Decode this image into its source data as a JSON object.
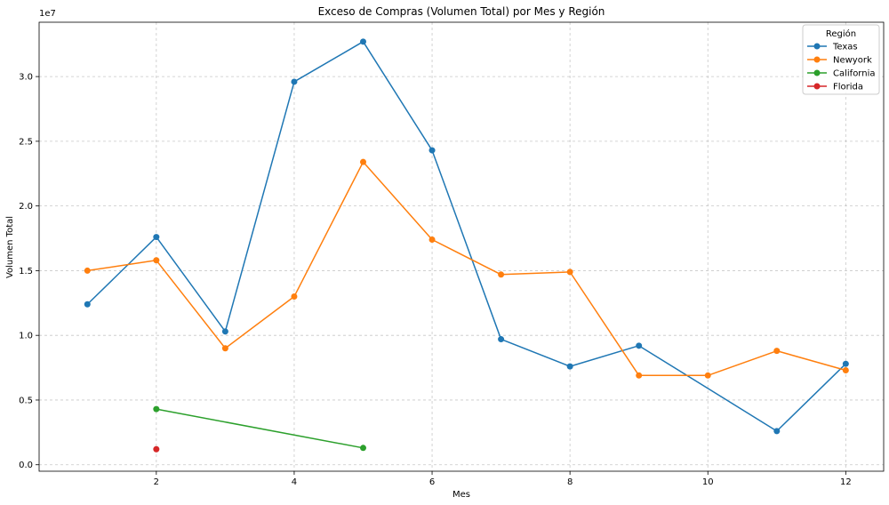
{
  "chart_data": {
    "type": "line",
    "title": "Exceso de Compras (Volumen Total) por Mes y Región",
    "xlabel": "Mes",
    "ylabel": "Volumen Total",
    "y_offset_label": "1e7",
    "xlim": [
      0.3,
      12.55
    ],
    "ylim": [
      -0.05,
      3.42
    ],
    "y_unit_scale": 10000000,
    "x_ticks": [
      2,
      4,
      6,
      8,
      10,
      12
    ],
    "x_tick_labels": [
      "2",
      "4",
      "6",
      "8",
      "10",
      "12"
    ],
    "y_ticks": [
      0,
      0.5,
      1.0,
      1.5,
      2.0,
      2.5,
      3.0
    ],
    "y_tick_labels": [
      "0.0",
      "0.5",
      "1.0",
      "1.5",
      "2.0",
      "2.5",
      "3.0"
    ],
    "grid": true,
    "legend_title": "Región",
    "legend_position": "top-right",
    "series": [
      {
        "name": "Texas",
        "color": "#1f77b4",
        "x": [
          1,
          2,
          3,
          4,
          5,
          6,
          7,
          8,
          9,
          11,
          12
        ],
        "values": [
          1.24,
          1.76,
          1.03,
          2.96,
          3.27,
          2.43,
          0.97,
          0.76,
          0.92,
          0.26,
          0.78
        ]
      },
      {
        "name": "Newyork",
        "color": "#ff7f0e",
        "x": [
          1,
          2,
          3,
          4,
          5,
          6,
          7,
          8,
          9,
          10,
          11,
          12
        ],
        "values": [
          1.5,
          1.58,
          0.9,
          1.3,
          2.34,
          1.74,
          1.47,
          1.49,
          0.69,
          0.69,
          0.88,
          0.73
        ]
      },
      {
        "name": "California",
        "color": "#2ca02c",
        "x": [
          2,
          5
        ],
        "values": [
          0.43,
          0.13
        ]
      },
      {
        "name": "Florida",
        "color": "#d62728",
        "x": [
          2
        ],
        "values": [
          0.12
        ]
      }
    ]
  }
}
